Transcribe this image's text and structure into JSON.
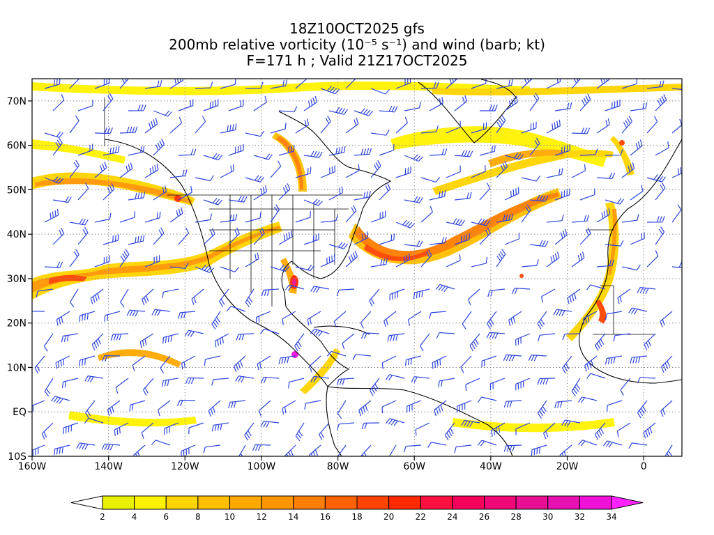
{
  "title": {
    "line1": "18Z10OCT2025 gfs",
    "line2": "200mb relative vorticity (10⁻⁵ s⁻¹) and wind (barb; kt)",
    "line3": "F=171 h ; Valid 21Z17OCT2025"
  },
  "map": {
    "projection": "cylindrical equidistant",
    "lon_range": [
      -160,
      10
    ],
    "lat_range": [
      -10,
      75
    ],
    "lat_labels": [
      "70N",
      "60N",
      "50N",
      "40N",
      "30N",
      "20N",
      "10N",
      "EQ",
      "10S"
    ],
    "lat_values": [
      70,
      60,
      50,
      40,
      30,
      20,
      10,
      0,
      -10
    ],
    "lon_labels": [
      "160W",
      "140W",
      "120W",
      "100W",
      "80W",
      "60W",
      "40W",
      "20W",
      "0"
    ],
    "lon_values": [
      -160,
      -140,
      -120,
      -100,
      -80,
      -60,
      -40,
      -20,
      0
    ],
    "gridlines": "dotted",
    "barb_color": "#2d44e0",
    "coast_color": "#000000"
  },
  "colorbar": {
    "labels": [
      "2",
      "4",
      "6",
      "8",
      "10",
      "12",
      "14",
      "16",
      "18",
      "20",
      "22",
      "24",
      "26",
      "28",
      "30",
      "32",
      "34"
    ],
    "colors": [
      "#e8f000",
      "#fff200",
      "#ffd400",
      "#ffbe00",
      "#ffa800",
      "#ff9600",
      "#ff7e00",
      "#ff6200",
      "#ff4400",
      "#ff2a00",
      "#ff1040",
      "#f5005a",
      "#ee0878",
      "#e81090",
      "#e810b0",
      "#f010d8"
    ],
    "over_color": "#ff22ff",
    "under_color": "#ffffff"
  }
}
